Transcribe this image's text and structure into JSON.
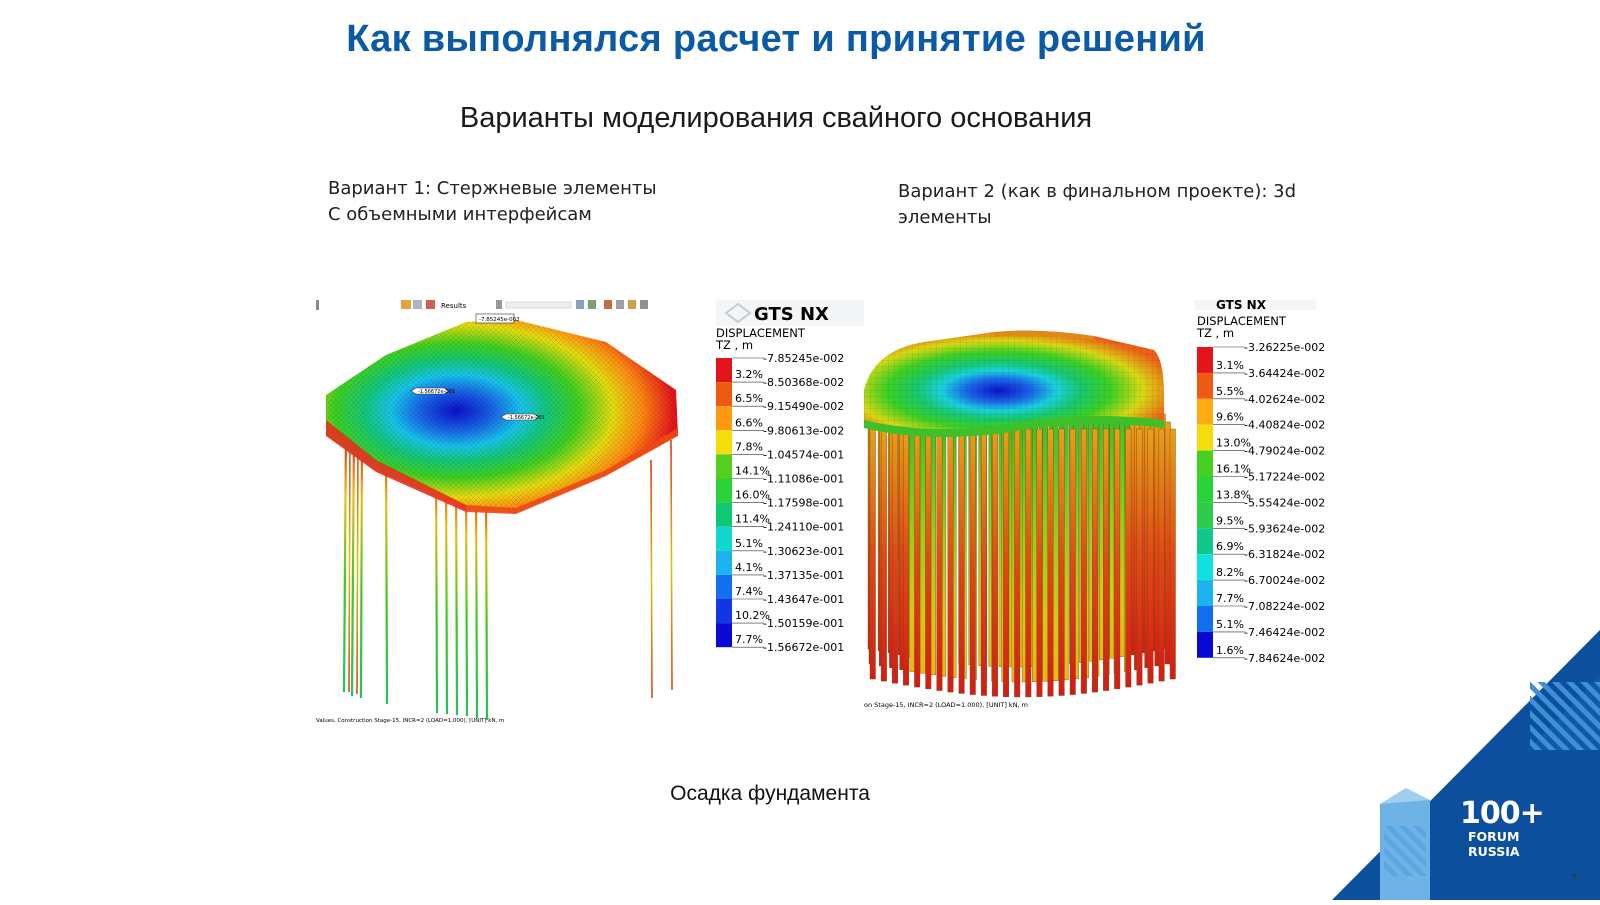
{
  "slide": {
    "title": "Как выполнялся расчет и принятие решений",
    "subtitle": "Варианты моделирования свайного основания",
    "variant1": {
      "line1": "Вариант 1: Стержневые элементы",
      "line2": "С объемными интерфейсам"
    },
    "variant2": {
      "line1": "Вариант 2 (как в финальном проекте): 3d",
      "line2": "элементы"
    },
    "caption": "Осадка фундамента",
    "page_number": "7"
  },
  "left_model": {
    "logo": "GTS NX",
    "legend_title": "DISPLACEMENT",
    "legend_unit": "TZ , m",
    "colors": [
      "#e4141c",
      "#ee5a14",
      "#ff9a10",
      "#f5dc0c",
      "#55cf1e",
      "#28d43a",
      "#10c874",
      "#10d8cc",
      "#1cb4ee",
      "#1270f0",
      "#1236e4",
      "#0a0ad2"
    ],
    "values": [
      "-7.85245e-002",
      "-8.50368e-002",
      "-9.15490e-002",
      "-9.80613e-002",
      "-1.04574e-001",
      "-1.11086e-001",
      "-1.17598e-001",
      "-1.24110e-001",
      "-1.30623e-001",
      "-1.37135e-001",
      "-1.43647e-001",
      "-1.50159e-001",
      "-1.56672e-001"
    ],
    "percents": [
      "3.2%",
      "6.5%",
      "6.6%",
      "7.8%",
      "14.1%",
      "16.0%",
      "11.4%",
      "5.1%",
      "4.1%",
      "7.4%",
      "10.2%",
      "7.7%"
    ],
    "toolbar_text": "Results",
    "marker_top": "-7.85245e-002",
    "marker_1": "-1.56672e-001",
    "marker_2": "-1.56672e-001",
    "status_text": "Values, Construction Stage-15, INCR=2 (LOAD=1.000), [UNIT] kN, m"
  },
  "right_model": {
    "logo": "GTS NX",
    "legend_title": "DISPLACEMENT",
    "legend_unit": "TZ , m",
    "colors": [
      "#e4141c",
      "#ee5a14",
      "#ffaa10",
      "#f5dc0c",
      "#46d022",
      "#28d43a",
      "#2ecc4a",
      "#10c88a",
      "#10e0e0",
      "#1cb4ee",
      "#1270f0",
      "#0a0ad2"
    ],
    "values": [
      "-3.26225e-002",
      "-3.64424e-002",
      "-4.02624e-002",
      "-4.40824e-002",
      "-4.79024e-002",
      "-5.17224e-002",
      "-5.55424e-002",
      "-5.93624e-002",
      "-6.31824e-002",
      "-6.70024e-002",
      "-7.08224e-002",
      "-7.46424e-002",
      "-7.84624e-002"
    ],
    "percents": [
      "3.1%",
      "5.5%",
      "9.6%",
      "13.0%",
      "16.1%",
      "13.8%",
      "9.5%",
      "6.9%",
      "8.2%",
      "7.7%",
      "5.1%",
      "1.6%"
    ],
    "status_text": "on Stage-15, INCR=2 (LOAD=1.000), [UNIT] kN, m"
  },
  "forum_logo": {
    "number": "100+",
    "line1": "FORUM",
    "line2": "RUSSIA"
  }
}
